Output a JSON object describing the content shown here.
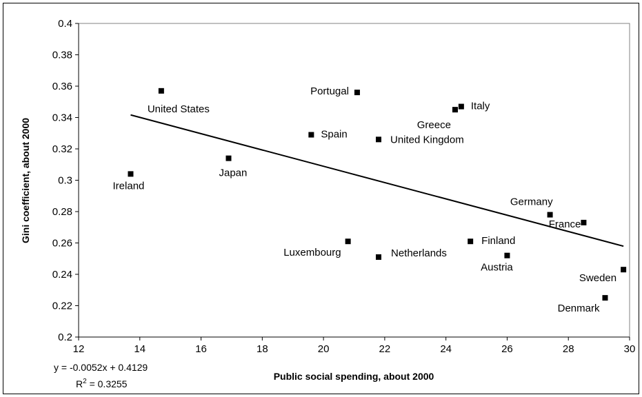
{
  "chart_data": {
    "type": "scatter",
    "title": "",
    "xlabel": "Public social spending, about 2000",
    "ylabel": "Gini coefficient, about 2000",
    "xlim": [
      12,
      30
    ],
    "ylim": [
      0.2,
      0.4
    ],
    "xticks": [
      12,
      14,
      16,
      18,
      20,
      22,
      24,
      26,
      28,
      30
    ],
    "yticks": [
      0.2,
      0.22,
      0.24,
      0.26,
      0.28,
      0.3,
      0.32,
      0.34,
      0.36,
      0.38,
      0.4
    ],
    "ytick_labels": [
      "0.2",
      "0.22",
      "0.24",
      "0.26",
      "0.28",
      "0.3",
      "0.32",
      "0.34",
      "0.36",
      "0.38",
      "0.4"
    ],
    "grid": false,
    "points": [
      {
        "label": "United States",
        "x": 14.7,
        "y": 0.357
      },
      {
        "label": "Ireland",
        "x": 13.7,
        "y": 0.304
      },
      {
        "label": "Japan",
        "x": 16.9,
        "y": 0.314
      },
      {
        "label": "Portugal",
        "x": 21.1,
        "y": 0.356
      },
      {
        "label": "Spain",
        "x": 19.6,
        "y": 0.329
      },
      {
        "label": "United Kingdom",
        "x": 21.8,
        "y": 0.326
      },
      {
        "label": "Greece",
        "x": 24.3,
        "y": 0.345
      },
      {
        "label": "Italy",
        "x": 24.5,
        "y": 0.347
      },
      {
        "label": "Germany",
        "x": 27.4,
        "y": 0.278
      },
      {
        "label": "France",
        "x": 28.5,
        "y": 0.273
      },
      {
        "label": "Luxembourg",
        "x": 20.8,
        "y": 0.261
      },
      {
        "label": "Netherlands",
        "x": 21.8,
        "y": 0.251
      },
      {
        "label": "Finland",
        "x": 24.8,
        "y": 0.261
      },
      {
        "label": "Austria",
        "x": 26.0,
        "y": 0.252
      },
      {
        "label": "Sweden",
        "x": 29.8,
        "y": 0.243
      },
      {
        "label": "Denmark",
        "x": 29.2,
        "y": 0.225
      }
    ],
    "trendline": {
      "type": "linear",
      "slope": -0.0052,
      "intercept": 0.4129,
      "x_range": [
        13.7,
        29.8
      ],
      "equation": "y = -0.0052x + 0.4129",
      "r_squared_label": "R",
      "r_squared_sup": "2",
      "r_squared_value": " = 0.3255"
    }
  }
}
